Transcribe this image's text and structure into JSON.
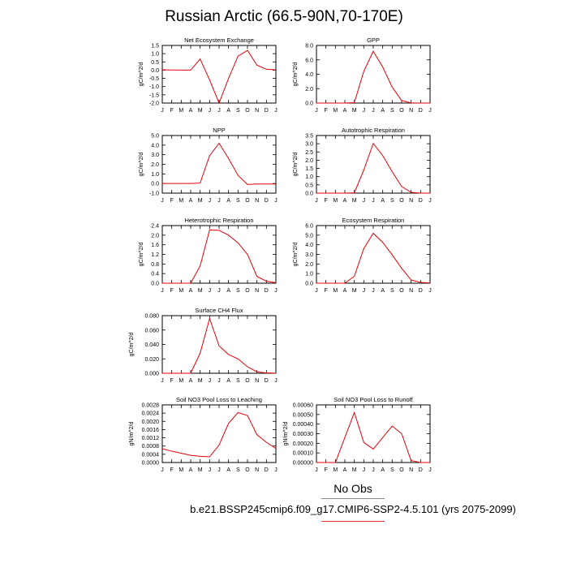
{
  "figure": {
    "title": "Russian Arctic (66.5-90N,70-170E)",
    "legend_label": "No Obs",
    "case_label": "b.e21.BSSP245cmip6.f09_g17.CMIP6-SSP2-4.5.101 (yrs 2075-2099)",
    "line_color": "#e8000b"
  },
  "chart_data": [
    {
      "type": "line",
      "title": "Net Ecosystem Exchange",
      "ylabel": "gC/m^2/d",
      "x": [
        "J",
        "F",
        "M",
        "A",
        "M",
        "J",
        "J",
        "A",
        "S",
        "O",
        "N",
        "D",
        "J"
      ],
      "ylim": [
        -2.0,
        1.5
      ],
      "yticks": [
        "1.5",
        "1.0",
        "0.5",
        "0.0",
        "-0.5",
        "-1.0",
        "-1.5",
        "-2.0"
      ],
      "series": [
        {
          "values": [
            0.02,
            0.01,
            0.0,
            0.0,
            0.68,
            -0.6,
            -2.0,
            -0.5,
            0.85,
            1.2,
            0.3,
            0.05,
            0.02
          ]
        }
      ]
    },
    {
      "type": "line",
      "title": "GPP",
      "ylabel": "gC/m^2/d",
      "x": [
        "J",
        "F",
        "M",
        "A",
        "M",
        "J",
        "J",
        "A",
        "S",
        "O",
        "N",
        "D",
        "J"
      ],
      "ylim": [
        0,
        8
      ],
      "yticks": [
        "8.0",
        "6.0",
        "4.0",
        "2.0",
        "0.0"
      ],
      "series": [
        {
          "values": [
            0,
            0,
            0,
            0,
            0.05,
            4.4,
            7.2,
            5.0,
            2.2,
            0.35,
            0.02,
            0,
            0
          ]
        }
      ]
    },
    {
      "type": "line",
      "title": "NPP",
      "ylabel": "gC/m^2/d",
      "x": [
        "J",
        "F",
        "M",
        "A",
        "M",
        "J",
        "J",
        "A",
        "S",
        "O",
        "N",
        "D",
        "J"
      ],
      "ylim": [
        -1.0,
        5.0
      ],
      "yticks": [
        "5.0",
        "4.0",
        "3.0",
        "2.0",
        "1.0",
        "0.0",
        "-1.0"
      ],
      "series": [
        {
          "values": [
            0,
            0,
            0,
            0,
            0.05,
            2.9,
            4.2,
            2.6,
            0.85,
            -0.1,
            -0.05,
            -0.05,
            -0.05
          ]
        }
      ]
    },
    {
      "type": "line",
      "title": "Autotrophic Respiration",
      "ylabel": "gC/m^2/d",
      "x": [
        "J",
        "F",
        "M",
        "A",
        "M",
        "J",
        "J",
        "A",
        "S",
        "O",
        "N",
        "D",
        "J"
      ],
      "ylim": [
        0,
        3.5
      ],
      "yticks": [
        "3.5",
        "3.0",
        "2.5",
        "2.0",
        "1.5",
        "1.0",
        "0.5",
        "0.0"
      ],
      "series": [
        {
          "values": [
            0,
            0,
            0,
            0,
            0.02,
            1.4,
            3.02,
            2.28,
            1.3,
            0.4,
            0.05,
            0,
            0
          ]
        }
      ]
    },
    {
      "type": "line",
      "title": "Heterotrophic Respiration",
      "ylabel": "gC/m^2/d",
      "x": [
        "J",
        "F",
        "M",
        "A",
        "M",
        "J",
        "J",
        "A",
        "S",
        "O",
        "N",
        "D",
        "J"
      ],
      "ylim": [
        0,
        2.4
      ],
      "yticks": [
        "2.4",
        "2.0",
        "1.6",
        "1.2",
        "0.8",
        "0.4",
        "0.0"
      ],
      "series": [
        {
          "values": [
            0,
            0,
            0,
            0,
            0.72,
            2.22,
            2.2,
            2.0,
            1.68,
            1.2,
            0.28,
            0.08,
            0.02
          ]
        }
      ]
    },
    {
      "type": "line",
      "title": "Ecosystem Respiration",
      "ylabel": "gC/m^2/d",
      "x": [
        "J",
        "F",
        "M",
        "A",
        "M",
        "J",
        "J",
        "A",
        "S",
        "O",
        "N",
        "D",
        "J"
      ],
      "ylim": [
        0,
        6.0
      ],
      "yticks": [
        "6.0",
        "5.0",
        "4.0",
        "3.0",
        "2.0",
        "1.0",
        "0.0"
      ],
      "series": [
        {
          "values": [
            0,
            0,
            0,
            0,
            0.72,
            3.6,
            5.2,
            4.25,
            2.95,
            1.55,
            0.33,
            0.08,
            0.02
          ]
        }
      ]
    },
    {
      "type": "line",
      "title": "Surface CH4 Flux",
      "ylabel": "gC/m^2/d",
      "x": [
        "J",
        "F",
        "M",
        "A",
        "M",
        "J",
        "J",
        "A",
        "S",
        "O",
        "N",
        "D",
        "J"
      ],
      "ylim": [
        0,
        0.08
      ],
      "yticks": [
        "0.080",
        "0.060",
        "0.040",
        "0.020",
        "0.000"
      ],
      "series": [
        {
          "values": [
            0,
            0,
            0,
            0,
            0.028,
            0.076,
            0.038,
            0.026,
            0.02,
            0.009,
            0.002,
            0.0005,
            0.0002
          ]
        }
      ]
    },
    {
      "type": "line",
      "title": "Soil NO3 Pool Loss to Leaching",
      "ylabel": "gN/m^2/d",
      "x": [
        "J",
        "F",
        "M",
        "A",
        "M",
        "J",
        "J",
        "A",
        "S",
        "O",
        "N",
        "D",
        "J"
      ],
      "ylim": [
        0,
        0.0028
      ],
      "yticks": [
        "0.0028",
        "0.0024",
        "0.0020",
        "0.0016",
        "0.0012",
        "0.0008",
        "0.0004",
        "0.0000"
      ],
      "series": [
        {
          "values": [
            0.00067,
            0.00055,
            0.00045,
            0.00035,
            0.0003,
            0.00028,
            0.00085,
            0.0019,
            0.00243,
            0.00228,
            0.00135,
            0.00098,
            0.00068
          ]
        }
      ]
    },
    {
      "type": "line",
      "title": "Soil NO3 Pool Loss to Runoff",
      "ylabel": "gN/m^2/d",
      "x": [
        "J",
        "F",
        "M",
        "A",
        "M",
        "J",
        "J",
        "A",
        "S",
        "O",
        "N",
        "D",
        "J"
      ],
      "ylim": [
        0,
        0.0006
      ],
      "yticks": [
        "0.00060",
        "0.00050",
        "0.00040",
        "0.00030",
        "0.00020",
        "0.00010",
        "0.00000"
      ],
      "series": [
        {
          "values": [
            0,
            0,
            0,
            0.00026,
            0.00052,
            0.00021,
            0.00014,
            0.00026,
            0.00038,
            0.0003,
            2e-05,
            0,
            0
          ]
        }
      ]
    }
  ]
}
